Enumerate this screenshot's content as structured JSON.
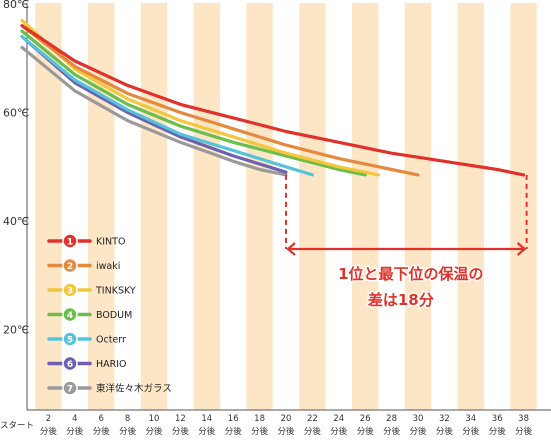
{
  "chart_data": {
    "type": "line",
    "y_unit": "℃",
    "ylim": [
      0,
      80
    ],
    "y_ticks": [
      "20℃",
      "40℃",
      "60℃",
      "80℃"
    ],
    "y_tick_values": [
      20,
      40,
      60,
      80
    ],
    "x_start_label": "スタート",
    "x_tick_labels": [
      [
        "2",
        "分後"
      ],
      [
        "4",
        "分後"
      ],
      [
        "6",
        "分後"
      ],
      [
        "8",
        "分後"
      ],
      [
        "10",
        "分後"
      ],
      [
        "12",
        "分後"
      ],
      [
        "14",
        "分後"
      ],
      [
        "16",
        "分後"
      ],
      [
        "18",
        "分後"
      ],
      [
        "20",
        "分後"
      ],
      [
        "22",
        "分後"
      ],
      [
        "24",
        "分後"
      ],
      [
        "26",
        "分後"
      ],
      [
        "28",
        "分後"
      ],
      [
        "30",
        "分後"
      ],
      [
        "32",
        "分後"
      ],
      [
        "34",
        "分後"
      ],
      [
        "36",
        "分後"
      ],
      [
        "38",
        "分後"
      ]
    ],
    "x_tick_values": [
      2,
      4,
      6,
      8,
      10,
      12,
      14,
      16,
      18,
      20,
      22,
      24,
      26,
      28,
      30,
      32,
      34,
      36,
      38
    ],
    "series": [
      {
        "rank": "1",
        "name": "KINTO",
        "color": "#e0322b",
        "x": [
          0,
          4,
          8,
          12,
          16,
          20,
          24,
          28,
          32,
          36,
          38
        ],
        "y": [
          76,
          69.5,
          65,
          61.5,
          59,
          56.5,
          54.5,
          52.5,
          51,
          49.5,
          48.5
        ]
      },
      {
        "rank": "2",
        "name": "iwaki",
        "color": "#e58a3c",
        "x": [
          0,
          4,
          8,
          12,
          16,
          20,
          24,
          28,
          30
        ],
        "y": [
          76,
          68.5,
          63.5,
          60,
          57,
          54,
          51.5,
          49.5,
          48.5
        ]
      },
      {
        "rank": "3",
        "name": "TINKSKY",
        "color": "#f3c63b",
        "x": [
          0,
          4,
          8,
          12,
          16,
          20,
          24,
          26,
          27
        ],
        "y": [
          77,
          68,
          62.5,
          58.5,
          55.5,
          52.5,
          50,
          49,
          48.5
        ]
      },
      {
        "rank": "4",
        "name": "BODUM",
        "color": "#6bbe4a",
        "x": [
          0,
          4,
          8,
          12,
          16,
          20,
          24,
          26
        ],
        "y": [
          75,
          67,
          61.5,
          57.5,
          54.5,
          52,
          49.5,
          48.5
        ]
      },
      {
        "rank": "5",
        "name": "Octerr",
        "color": "#56c3dd",
        "x": [
          0,
          4,
          8,
          12,
          16,
          20,
          22
        ],
        "y": [
          74,
          66,
          60.5,
          56,
          53,
          50,
          48.5
        ]
      },
      {
        "rank": "6",
        "name": "HARIO",
        "color": "#6e60b0",
        "x": [
          0,
          4,
          8,
          12,
          16,
          18,
          20
        ],
        "y": [
          74,
          65.5,
          60,
          55.5,
          52,
          50.5,
          49
        ]
      },
      {
        "rank": "7",
        "name": "東洋佐々木ガラス",
        "color": "#9a9a9a",
        "x": [
          0,
          4,
          8,
          12,
          16,
          18,
          20
        ],
        "y": [
          72,
          64,
          58.5,
          54.5,
          51,
          49.5,
          48.5
        ]
      }
    ],
    "annotation": {
      "lines": [
        "1位と最下位の保温の",
        "差は18分"
      ],
      "range_x": [
        20,
        38
      ],
      "range_y": 48.5
    },
    "grid": "vertical alternating bands",
    "legend_position": "left-middle"
  },
  "colors": {
    "band": "#fde6c6",
    "accent": "#e0322b"
  }
}
